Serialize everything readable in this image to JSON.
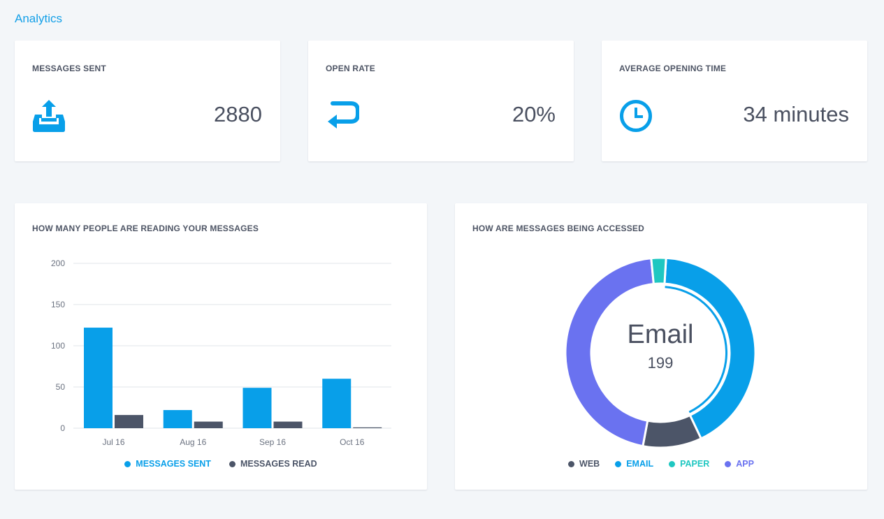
{
  "page": {
    "title": "Analytics"
  },
  "stats": [
    {
      "label": "MESSAGES SENT",
      "value": "2880",
      "icon": "upload-tray-icon"
    },
    {
      "label": "OPEN RATE",
      "value": "20%",
      "icon": "return-arrow-icon"
    },
    {
      "label": "AVERAGE OPENING TIME",
      "value": "34 minutes",
      "icon": "clock-icon"
    }
  ],
  "colors": {
    "blue": "#089fe9",
    "dark": "#4c5568",
    "teal": "#1fc7c1",
    "purple": "#6a72f0",
    "accent": "#14a0e8"
  },
  "bar_panel": {
    "title": "HOW MANY PEOPLE ARE READING YOUR MESSAGES"
  },
  "donut_panel": {
    "title": "HOW ARE MESSAGES BEING ACCESSED",
    "center_label": "Email",
    "center_value": "199"
  },
  "chart_data": [
    {
      "type": "bar",
      "categories": [
        "Jul 16",
        "Aug 16",
        "Sep 16",
        "Oct 16"
      ],
      "series": [
        {
          "name": "MESSAGES SENT",
          "color": "#089fe9",
          "values": [
            122,
            22,
            49,
            60
          ]
        },
        {
          "name": "MESSAGES READ",
          "color": "#4c5568",
          "values": [
            16,
            8,
            8,
            1
          ]
        }
      ],
      "yticks": [
        0,
        50,
        100,
        150,
        200
      ],
      "ylim": [
        0,
        200
      ],
      "grid": true,
      "legend": "bottom-center"
    },
    {
      "type": "pie",
      "donut": true,
      "slices": [
        {
          "name": "WEB",
          "color": "#4c5568",
          "value": 10
        },
        {
          "name": "EMAIL",
          "color": "#089fe9",
          "value": 42
        },
        {
          "name": "PAPER",
          "color": "#1fc7c1",
          "value": 2.5
        },
        {
          "name": "APP",
          "color": "#6a72f0",
          "value": 45.5
        }
      ],
      "highlighted": "EMAIL",
      "legend": "bottom-center"
    }
  ]
}
